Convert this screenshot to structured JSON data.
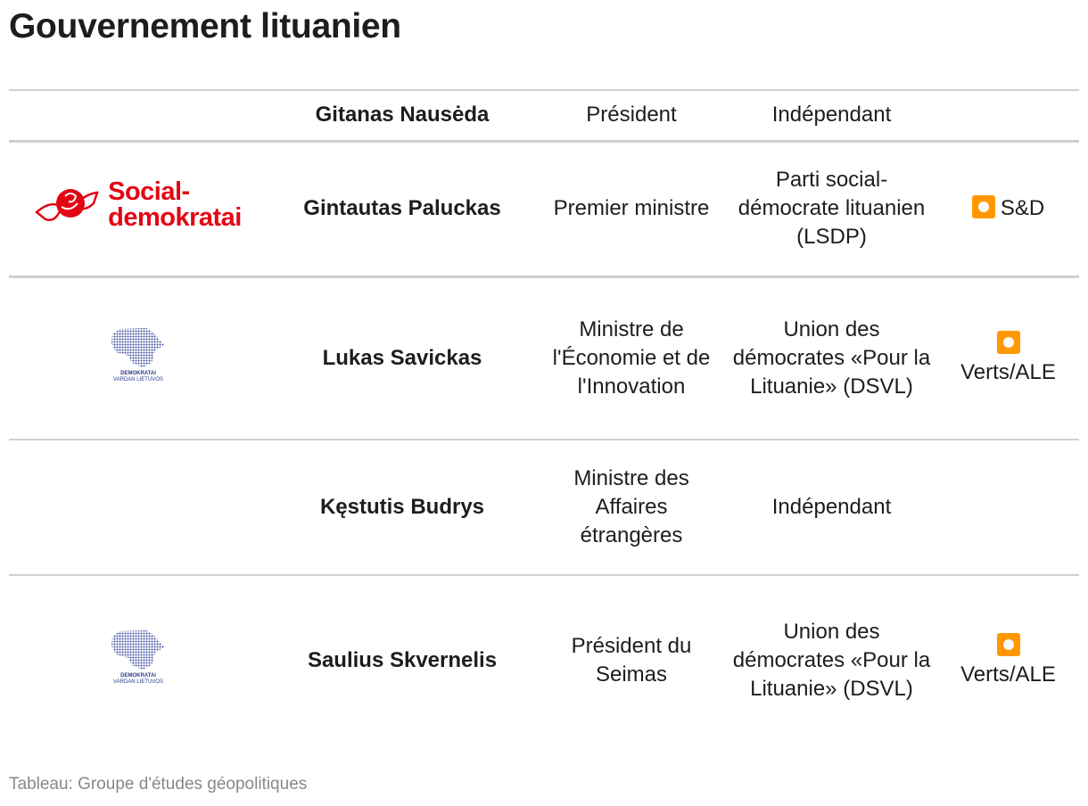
{
  "title": "Gouvernement lituanien",
  "rows": [
    {
      "logo": "",
      "name": "Gitanas Nausėda",
      "role": "Président",
      "party": "Indépendant",
      "group": ""
    },
    {
      "logo": "Social-demokratai",
      "name": "Gintautas Paluckas",
      "role": "Premier ministre",
      "party": "Parti social-démocrate lituanien (LSDP)",
      "group": "S&D",
      "group_icon": "orange-square-icon"
    },
    {
      "logo": "DEMOKRATAI VARDAN LIETUVOS",
      "name": "Lukas Savickas",
      "role": "Ministre de l'Économie et de l'Innovation",
      "party": "Union des démocrates «Pour la Lituanie» (DSVL)",
      "group": "Verts/ALE",
      "group_icon": "orange-square-icon"
    },
    {
      "logo": "",
      "name": "Kęstutis Budrys",
      "role": "Ministre des Affaires étrangères",
      "party": "Indépendant",
      "group": ""
    },
    {
      "logo": "DEMOKRATAI VARDAN LIETUVOS",
      "name": "Saulius Skvernelis",
      "role": "Président du Seimas",
      "party": "Union des démocrates «Pour la Lituanie» (DSVL)",
      "group": "Verts/ALE",
      "group_icon": "orange-square-icon"
    }
  ],
  "logos": {
    "sd_line1": "Social-",
    "sd_line2": "demokratai",
    "dem_line1": "DEMOKRATAI",
    "dem_line2": "VARDAN LIETUVOS"
  },
  "footer": "Tableau: Groupe d'études géopolitiques",
  "colors": {
    "sd_red": "#e30613",
    "dem_blue": "#2b3a8c",
    "badge_orange": "#ff9800"
  }
}
